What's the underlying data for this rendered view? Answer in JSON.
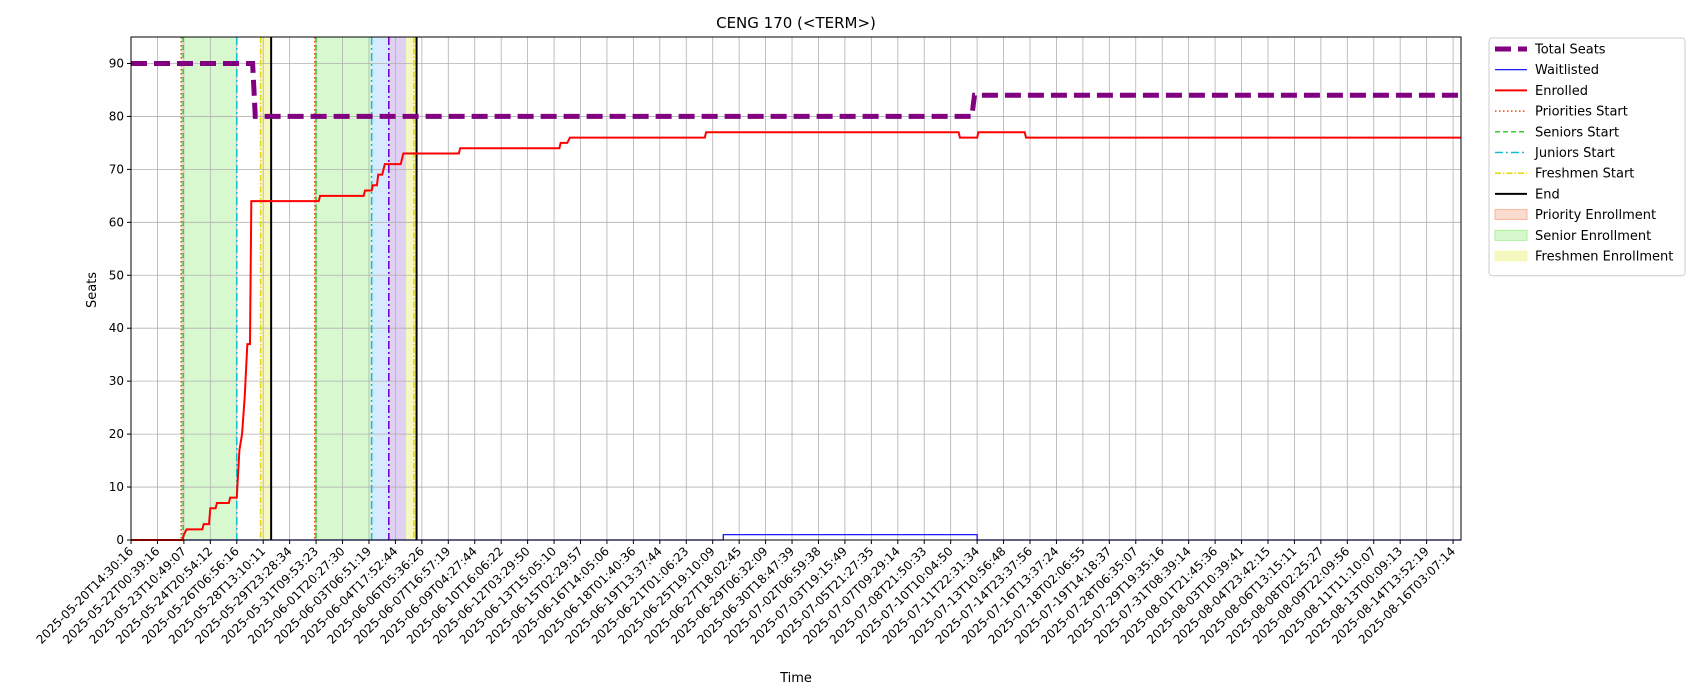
{
  "chart_data": {
    "type": "line",
    "title": "CENG 170 (<TERM>)",
    "xlabel": "Time",
    "ylabel": "Seats",
    "ylim": [
      0,
      95
    ],
    "yticks": [
      0,
      10,
      20,
      30,
      40,
      50,
      60,
      70,
      80,
      90
    ],
    "grid": true,
    "legend_position": "outside-top-right",
    "x_tick_labels": [
      "2025-05-20T14:30:16",
      "2025-05-22T00:39:16",
      "2025-05-23T10:49:07",
      "2025-05-24T20:54:12",
      "2025-05-26T06:56:16",
      "2025-05-28T13:10:11",
      "2025-05-29T23:28:34",
      "2025-05-31T09:53:23",
      "2025-06-01T20:27:30",
      "2025-06-03T06:51:19",
      "2025-06-04T17:52:44",
      "2025-06-06T05:36:26",
      "2025-06-07T16:57:19",
      "2025-06-09T04:27:44",
      "2025-06-10T16:06:22",
      "2025-06-12T03:29:50",
      "2025-06-13T15:05:10",
      "2025-06-15T02:29:57",
      "2025-06-16T14:05:06",
      "2025-06-18T01:40:36",
      "2025-06-19T13:37:44",
      "2025-06-21T01:06:23",
      "2025-06-25T19:10:09",
      "2025-06-27T18:02:45",
      "2025-06-29T06:32:09",
      "2025-06-30T18:47:39",
      "2025-07-02T06:59:38",
      "2025-07-03T19:15:49",
      "2025-07-05T21:27:35",
      "2025-07-07T09:29:14",
      "2025-07-08T21:50:33",
      "2025-07-10T10:04:50",
      "2025-07-11T22:31:34",
      "2025-07-13T10:56:48",
      "2025-07-14T23:37:56",
      "2025-07-16T13:37:24",
      "2025-07-18T02:06:55",
      "2025-07-19T14:18:37",
      "2025-07-28T06:35:07",
      "2025-07-29T19:35:16",
      "2025-07-31T08:39:14",
      "2025-08-01T21:45:36",
      "2025-08-03T10:39:41",
      "2025-08-04T23:42:15",
      "2025-08-06T13:15:11",
      "2025-08-08T02:25:27",
      "2025-08-09T22:09:56",
      "2025-08-11T11:10:07",
      "2025-08-13T00:09:13",
      "2025-08-14T13:52:19",
      "2025-08-16T03:07:14"
    ],
    "x_range": [
      0,
      50.3
    ],
    "series": [
      {
        "name": "Total Seats",
        "color": "#800080",
        "style": "dashed-thick",
        "points": [
          [
            0,
            90
          ],
          [
            4.6,
            90
          ],
          [
            4.7,
            80
          ],
          [
            31.8,
            80
          ],
          [
            31.9,
            84
          ],
          [
            50.3,
            84
          ]
        ]
      },
      {
        "name": "Waitlisted",
        "color": "#0000ff",
        "style": "solid-thin",
        "points": [
          [
            0,
            0
          ],
          [
            22.4,
            0
          ],
          [
            22.4,
            1
          ],
          [
            32.0,
            1
          ],
          [
            32.0,
            0
          ],
          [
            50.3,
            0
          ]
        ]
      },
      {
        "name": "Enrolled",
        "color": "#ff0000",
        "style": "solid",
        "points": [
          [
            0,
            0
          ],
          [
            1.95,
            0
          ],
          [
            2.0,
            1
          ],
          [
            2.1,
            2
          ],
          [
            2.7,
            2
          ],
          [
            2.75,
            3
          ],
          [
            2.95,
            3
          ],
          [
            3.0,
            6
          ],
          [
            3.2,
            6
          ],
          [
            3.25,
            7
          ],
          [
            3.7,
            7
          ],
          [
            3.75,
            8
          ],
          [
            4.0,
            8
          ],
          [
            4.1,
            17
          ],
          [
            4.2,
            20
          ],
          [
            4.3,
            27
          ],
          [
            4.4,
            37
          ],
          [
            4.5,
            37
          ],
          [
            4.55,
            64
          ],
          [
            7.1,
            64
          ],
          [
            7.15,
            65
          ],
          [
            8.8,
            65
          ],
          [
            8.85,
            66
          ],
          [
            9.1,
            66
          ],
          [
            9.15,
            67
          ],
          [
            9.3,
            67
          ],
          [
            9.35,
            69
          ],
          [
            9.5,
            69
          ],
          [
            9.6,
            71
          ],
          [
            10.2,
            71
          ],
          [
            10.3,
            73
          ],
          [
            12.4,
            73
          ],
          [
            12.45,
            74
          ],
          [
            16.2,
            74
          ],
          [
            16.25,
            75
          ],
          [
            16.5,
            75
          ],
          [
            16.6,
            76
          ],
          [
            21.7,
            76
          ],
          [
            21.75,
            77
          ],
          [
            31.3,
            77
          ],
          [
            31.35,
            76
          ],
          [
            32.0,
            76
          ],
          [
            32.05,
            77
          ],
          [
            33.8,
            77
          ],
          [
            33.85,
            76
          ],
          [
            50.3,
            76
          ]
        ]
      }
    ],
    "event_lines": [
      {
        "name": "Priorities Start",
        "color": "#ff4500",
        "style": "dotted",
        "x": [
          1.9,
          6.95
        ]
      },
      {
        "name": "Seniors Start",
        "color": "#33cc33",
        "style": "dashed",
        "x": [
          1.97,
          7.0
        ]
      },
      {
        "name": "Juniors Start",
        "color": "#17becf",
        "style": "dashdot",
        "x": [
          4.0,
          9.1
        ]
      },
      {
        "name": "Freshmen Start",
        "color": "#e5d800",
        "style": "dashdotted",
        "x": [
          4.9,
          10.7
        ]
      },
      {
        "name": "End",
        "color": "#000000",
        "style": "solid",
        "x": [
          5.3,
          10.8
        ]
      },
      {
        "name": "",
        "color": "#7b00cc",
        "style": "dashdot",
        "x": [
          9.75
        ]
      }
    ],
    "shaded_regions": [
      {
        "name": "Priority Enrollment",
        "color": "#f4a582",
        "opacity": 0.4,
        "spans": [
          [
            1.9,
            1.97
          ],
          [
            6.95,
            7.0
          ]
        ]
      },
      {
        "name": "Senior Enrollment",
        "color": "#90ee77",
        "opacity": 0.35,
        "spans": [
          [
            1.97,
            4.0
          ],
          [
            7.0,
            9.1
          ]
        ]
      },
      {
        "name": "",
        "color": "#b0d8ff",
        "opacity": 0.5,
        "spans": [
          [
            9.1,
            9.75
          ]
        ]
      },
      {
        "name": "",
        "color": "#c9b3ea",
        "opacity": 0.6,
        "spans": [
          [
            9.75,
            10.4
          ]
        ]
      },
      {
        "name": "Freshmen Enrollment",
        "color": "#f3f8b0",
        "opacity": 0.8,
        "spans": [
          [
            4.9,
            5.3
          ],
          [
            10.4,
            10.8
          ]
        ]
      }
    ],
    "legend": [
      {
        "label": "Total Seats",
        "kind": "line",
        "color": "#800080",
        "style": "dashed-thick"
      },
      {
        "label": "Waitlisted",
        "kind": "line",
        "color": "#0000ff",
        "style": "solid-thin"
      },
      {
        "label": "Enrolled",
        "kind": "line",
        "color": "#ff0000",
        "style": "solid"
      },
      {
        "label": "Priorities Start",
        "kind": "line",
        "color": "#ff4500",
        "style": "dotted"
      },
      {
        "label": "Seniors Start",
        "kind": "line",
        "color": "#33cc33",
        "style": "dashed"
      },
      {
        "label": "Juniors Start",
        "kind": "line",
        "color": "#17becf",
        "style": "dashdot"
      },
      {
        "label": "Freshmen Start",
        "kind": "line",
        "color": "#e5d800",
        "style": "dashdotted"
      },
      {
        "label": "End",
        "kind": "line",
        "color": "#000000",
        "style": "solid"
      },
      {
        "label": "Priority Enrollment",
        "kind": "patch",
        "color": "#f4a582",
        "opacity": 0.4
      },
      {
        "label": "Senior Enrollment",
        "kind": "patch",
        "color": "#90ee77",
        "opacity": 0.35
      },
      {
        "label": "Freshmen Enrollment",
        "kind": "patch",
        "color": "#f3f8b0",
        "opacity": 0.8
      }
    ]
  }
}
